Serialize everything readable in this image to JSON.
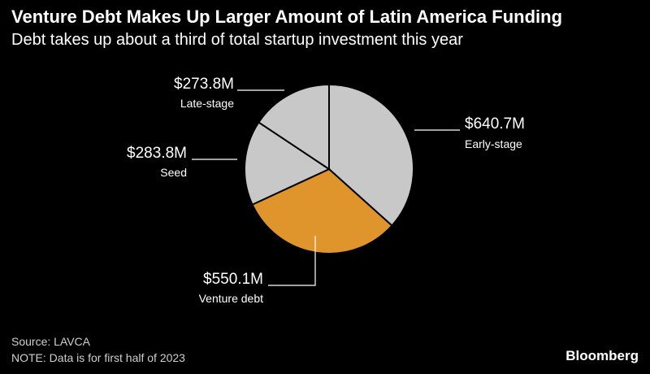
{
  "header": {
    "title": "Venture Debt Makes Up Larger Amount of Latin America Funding",
    "subtitle": "Debt takes up about a third of total startup investment this year"
  },
  "footer": {
    "source": "Source: LAVCA",
    "note": "NOTE: Data is for first half of 2023",
    "brand": "Bloomberg"
  },
  "colors": {
    "background": "#000000",
    "slice_default": "#c8c8c8",
    "slice_highlight": "#e0952c",
    "divider": "#000000",
    "text": "#ffffff"
  },
  "chart_data": {
    "type": "pie",
    "unit": "USD millions",
    "slices": [
      {
        "label": "Early-stage",
        "value": 640.7,
        "display": "$640.7M",
        "highlight": false
      },
      {
        "label": "Venture debt",
        "value": 550.1,
        "display": "$550.1M",
        "highlight": true
      },
      {
        "label": "Seed",
        "value": 283.8,
        "display": "$283.8M",
        "highlight": false
      },
      {
        "label": "Late-stage",
        "value": 273.8,
        "display": "$273.8M",
        "highlight": false
      }
    ]
  }
}
